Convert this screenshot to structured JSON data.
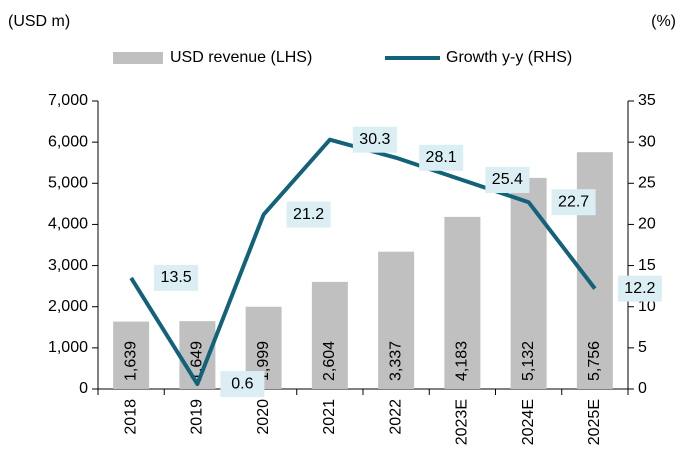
{
  "chart_data": {
    "type": "bar",
    "y_label": "(USD m)",
    "y2_label": "(%)",
    "categories": [
      "2018",
      "2019",
      "2020",
      "2021",
      "2022",
      "2023E",
      "2024E",
      "2025E"
    ],
    "series": [
      {
        "name": "USD revenue (LHS)",
        "type": "bar",
        "color": "#c0c0c0",
        "values": [
          1639,
          1649,
          1999,
          2604,
          3337,
          4183,
          5132,
          5756
        ],
        "value_labels": [
          "1,639",
          "1,649",
          "1,999",
          "2,604",
          "3,337",
          "4,183",
          "5,132",
          "5,756"
        ]
      },
      {
        "name": "Growth y-y (RHS)",
        "type": "line",
        "axis": "y2",
        "color": "#12627a",
        "values": [
          13.5,
          0.6,
          21.2,
          30.3,
          28.1,
          25.4,
          22.7,
          12.2
        ]
      }
    ],
    "ylim": [
      0,
      7000
    ],
    "yticks": [
      0,
      {
        "value": 1000,
        "label": "1,000"
      },
      {
        "value": 2000,
        "label": "2,000"
      },
      {
        "value": 3000,
        "label": "3,000"
      },
      {
        "value": 4000,
        "label": "4,000"
      },
      {
        "value": 5000,
        "label": "5,000"
      },
      {
        "value": 6000,
        "label": "6,000"
      },
      {
        "value": 7000,
        "label": "7,000"
      }
    ],
    "y2lim": [
      0,
      35
    ],
    "y2ticks": [
      0,
      5,
      10,
      15,
      20,
      25,
      30,
      35
    ],
    "grid": false,
    "legend": "top"
  }
}
